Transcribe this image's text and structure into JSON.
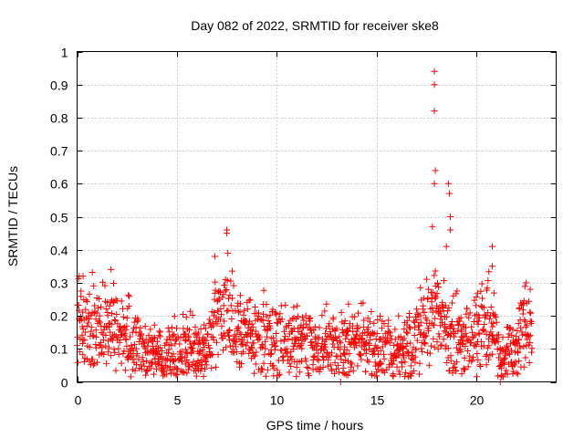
{
  "chart_data": {
    "type": "scatter",
    "title": "Day 082 of 2022, SRMTID for receiver ske8",
    "xlabel": "GPS time / hours",
    "ylabel": "SRMTID / TECUs",
    "xlim": [
      0,
      24
    ],
    "ylim": [
      0,
      1
    ],
    "grid": true,
    "legend": "none",
    "marker": "plus",
    "x_ticks": [
      0,
      5,
      10,
      15,
      20
    ],
    "x_tick_labels": [
      "0",
      "5",
      "10",
      "15",
      "20"
    ],
    "y_ticks": [
      0,
      0.1,
      0.2,
      0.3,
      0.4,
      0.5,
      0.6,
      0.7,
      0.8,
      0.9,
      1
    ],
    "y_tick_labels": [
      "0",
      "0.1",
      "0.2",
      "0.3",
      "0.4",
      "0.5",
      "0.6",
      "0.7",
      "0.8",
      "0.9",
      "1"
    ],
    "series": [
      {
        "name": "SRMTID",
        "color": "#ff0000",
        "description": "Typical band of values across the day (baseline trend, approximate)",
        "baseline": [
          [
            0.0,
            0.17
          ],
          [
            0.5,
            0.18
          ],
          [
            1.0,
            0.16
          ],
          [
            1.5,
            0.19
          ],
          [
            2.0,
            0.16
          ],
          [
            2.5,
            0.12
          ],
          [
            3.0,
            0.1
          ],
          [
            3.5,
            0.09
          ],
          [
            4.0,
            0.08
          ],
          [
            4.5,
            0.08
          ],
          [
            5.0,
            0.09
          ],
          [
            5.5,
            0.1
          ],
          [
            6.0,
            0.1
          ],
          [
            6.5,
            0.09
          ],
          [
            7.0,
            0.19
          ],
          [
            7.5,
            0.2
          ],
          [
            8.0,
            0.15
          ],
          [
            8.5,
            0.14
          ],
          [
            9.0,
            0.14
          ],
          [
            9.5,
            0.13
          ],
          [
            10.0,
            0.13
          ],
          [
            10.5,
            0.13
          ],
          [
            11.0,
            0.12
          ],
          [
            11.5,
            0.11
          ],
          [
            12.0,
            0.11
          ],
          [
            12.5,
            0.1
          ],
          [
            13.0,
            0.09
          ],
          [
            13.5,
            0.12
          ],
          [
            14.0,
            0.13
          ],
          [
            14.5,
            0.11
          ],
          [
            15.0,
            0.1
          ],
          [
            15.5,
            0.1
          ],
          [
            16.0,
            0.1
          ],
          [
            16.5,
            0.1
          ],
          [
            17.0,
            0.12
          ],
          [
            17.5,
            0.2
          ],
          [
            18.0,
            0.22
          ],
          [
            18.5,
            0.16
          ],
          [
            19.0,
            0.14
          ],
          [
            19.5,
            0.15
          ],
          [
            20.0,
            0.16
          ],
          [
            20.5,
            0.18
          ],
          [
            21.0,
            0.13
          ],
          [
            21.3,
            0.06
          ],
          [
            21.5,
            0.09
          ],
          [
            22.0,
            0.1
          ],
          [
            22.5,
            0.18
          ],
          [
            22.8,
            0.16
          ]
        ],
        "peaks": [
          [
            0.1,
            0.32
          ],
          [
            0.3,
            0.32
          ],
          [
            1.7,
            0.34
          ],
          [
            6.9,
            0.38
          ],
          [
            7.5,
            0.46
          ],
          [
            7.5,
            0.45
          ],
          [
            7.55,
            0.39
          ],
          [
            17.8,
            0.47
          ],
          [
            17.9,
            0.94
          ],
          [
            17.9,
            0.9
          ],
          [
            17.9,
            0.82
          ],
          [
            17.95,
            0.64
          ],
          [
            17.9,
            0.6
          ],
          [
            18.5,
            0.41
          ],
          [
            18.6,
            0.6
          ],
          [
            18.65,
            0.57
          ],
          [
            18.7,
            0.5
          ],
          [
            18.7,
            0.46
          ],
          [
            20.8,
            0.41
          ],
          [
            20.8,
            0.35
          ],
          [
            22.5,
            0.3
          ],
          [
            22.7,
            0.28
          ]
        ],
        "minima": [
          [
            13.2,
            0.0
          ],
          [
            21.2,
            0.0
          ],
          [
            21.25,
            0.02
          ],
          [
            15.0,
            0.03
          ]
        ]
      }
    ]
  }
}
